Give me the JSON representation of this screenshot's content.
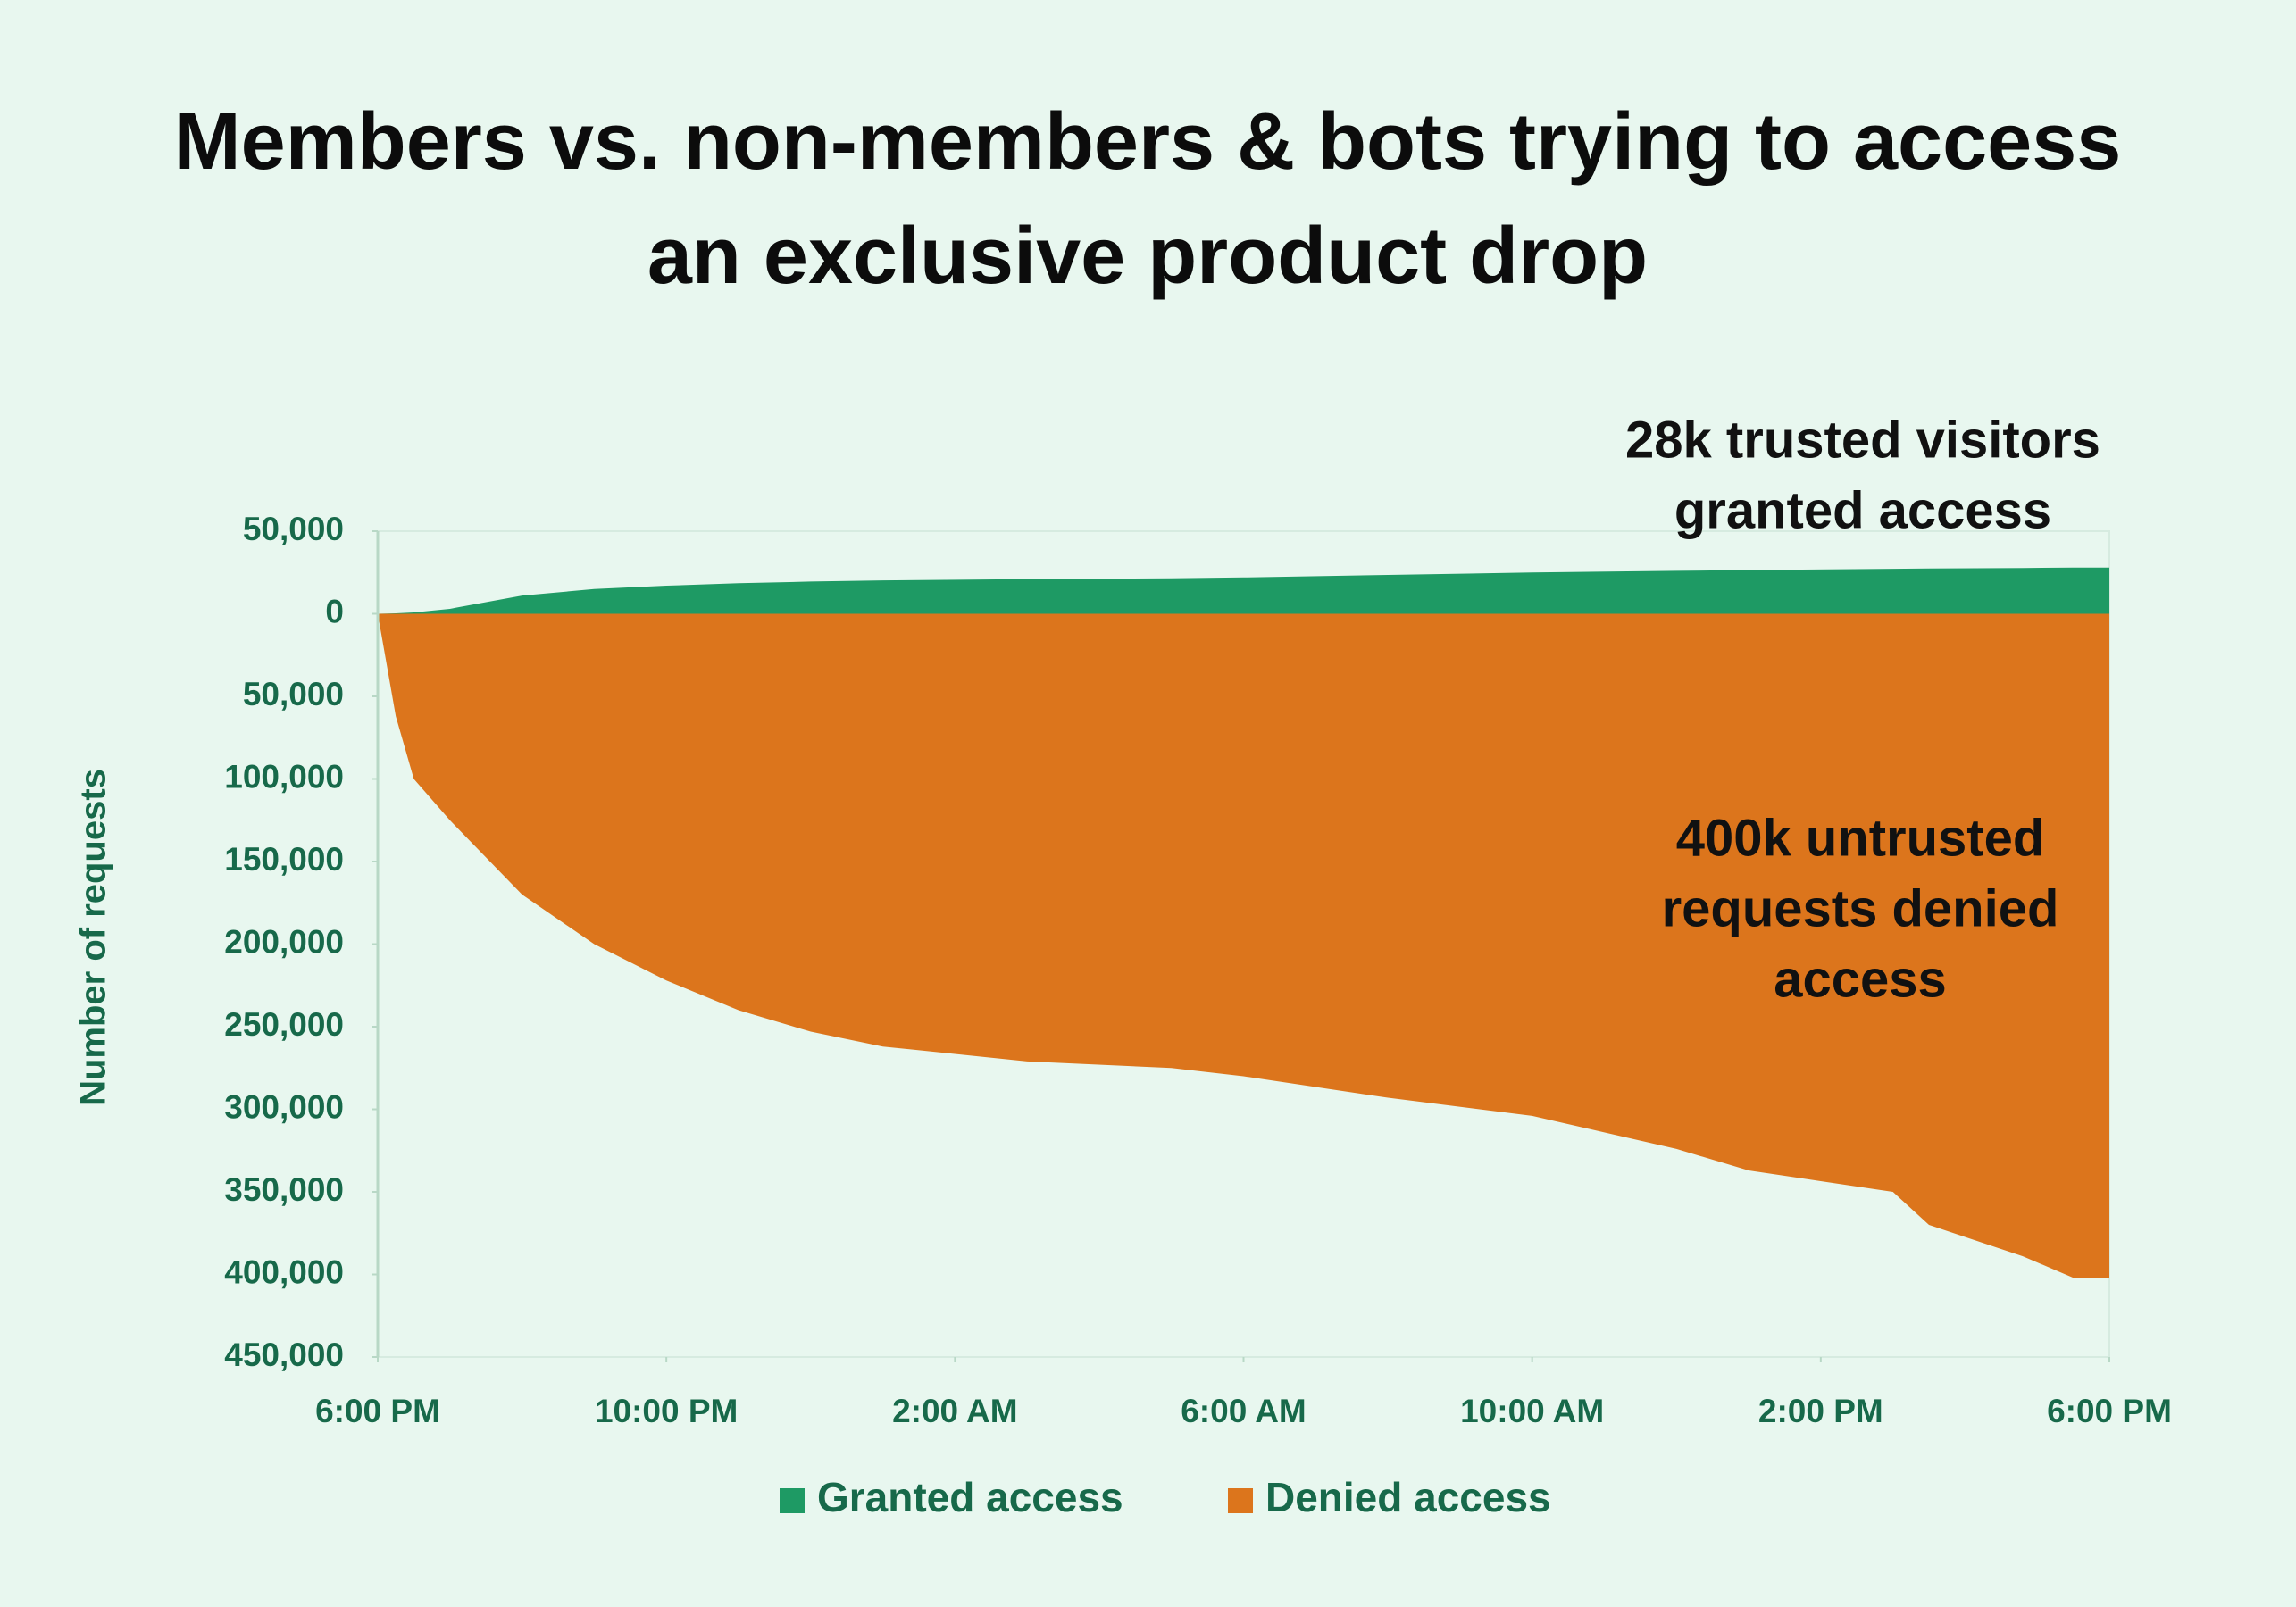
{
  "chart_data": {
    "type": "area",
    "title": "Members vs. non-members & bots trying to access an exclusive product drop",
    "y_label": "Number of requests",
    "x": [
      0,
      0.25,
      0.5,
      1,
      2,
      3,
      4,
      5,
      6,
      7,
      9,
      11,
      12,
      14,
      16,
      18,
      19,
      21,
      21.5,
      22.8,
      23.5,
      24
    ],
    "series": [
      {
        "name": "Granted access",
        "color": "#1e9a64",
        "values": [
          0,
          300,
          800,
          3000,
          11000,
          15000,
          17000,
          18500,
          19500,
          20200,
          21000,
          21500,
          22000,
          23500,
          25000,
          26000,
          26500,
          27200,
          27400,
          27700,
          28000,
          28000
        ]
      },
      {
        "name": "Denied access",
        "color": "#dc751c",
        "values": [
          0,
          -62000,
          -100000,
          -125000,
          -170000,
          -200000,
          -222000,
          -240000,
          -253000,
          -262000,
          -271000,
          -275000,
          -280000,
          -293000,
          -304000,
          -324000,
          -337000,
          -350000,
          -370000,
          -389000,
          -402000,
          -402000
        ]
      }
    ],
    "xlim": [
      0,
      24
    ],
    "xticks": [
      {
        "value": 0,
        "label": "6:00 PM"
      },
      {
        "value": 4,
        "label": "10:00 PM"
      },
      {
        "value": 8,
        "label": "2:00 AM"
      },
      {
        "value": 12,
        "label": "6:00 AM"
      },
      {
        "value": 16,
        "label": "10:00 AM"
      },
      {
        "value": 20,
        "label": "2:00 PM"
      },
      {
        "value": 24,
        "label": "6:00 PM"
      }
    ],
    "ylim": [
      -450000,
      50000
    ],
    "yticks": [
      {
        "value": 50000,
        "label": "50,000"
      },
      0,
      {
        "value": -50000,
        "label": "50,000"
      },
      {
        "value": -100000,
        "label": "100,000"
      },
      {
        "value": -150000,
        "label": "150,000"
      },
      {
        "value": -200000,
        "label": "200,000"
      },
      {
        "value": -250000,
        "label": "250,000"
      },
      {
        "value": -300000,
        "label": "300,000"
      },
      {
        "value": -350000,
        "label": "350,000"
      },
      {
        "value": -400000,
        "label": "400,000"
      },
      {
        "value": -450000,
        "label": "450,000"
      }
    ],
    "annotations": [
      {
        "lines": [
          "28k trusted visitors",
          "granted access"
        ]
      },
      {
        "lines": [
          "400k untrusted",
          "requests denied",
          "access"
        ]
      }
    ],
    "legend": "bottom"
  }
}
